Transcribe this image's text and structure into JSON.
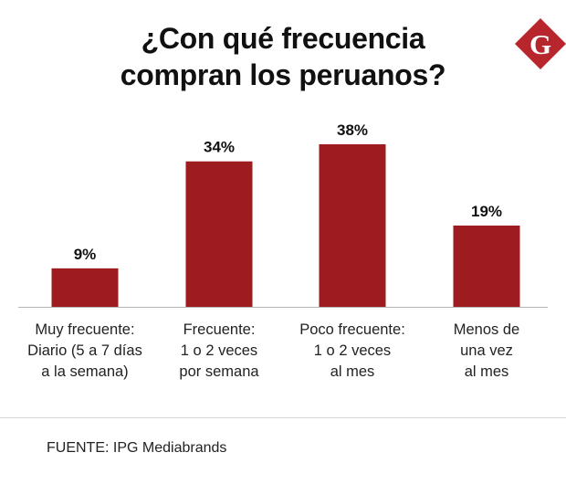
{
  "title": {
    "line1": "¿Con qué frecuencia",
    "line2": "compran los peruanos?"
  },
  "logo": {
    "letter": "G",
    "color": "#b8262d"
  },
  "chart_data": {
    "type": "bar",
    "title": "¿Con qué frecuencia compran los peruanos?",
    "categories": [
      "Muy frecuente: Diario (5 a 7 días a la semana)",
      "Frecuente: 1 o 2 veces por semana",
      "Poco frecuente: 1 o 2 veces al mes",
      "Menos de una vez al mes"
    ],
    "category_lines": [
      [
        "Muy frecuente:",
        "Diario (5 a 7 días",
        "a la semana)"
      ],
      [
        "Frecuente:",
        "1 o 2 veces",
        "por semana"
      ],
      [
        "Poco frecuente:",
        "1 o 2 veces",
        "al mes"
      ],
      [
        "Menos de",
        "una vez",
        "al mes"
      ]
    ],
    "values": [
      9,
      34,
      38,
      19
    ],
    "value_labels": [
      "9%",
      "34%",
      "38%",
      "19%"
    ],
    "unit": "%",
    "ylim": [
      0,
      38
    ],
    "xlabel": "",
    "ylabel": "",
    "grid": false,
    "bar_color": "#9e1c20",
    "axis_color": "#b5b5b5"
  },
  "source": "FUENTE: IPG Mediabrands"
}
